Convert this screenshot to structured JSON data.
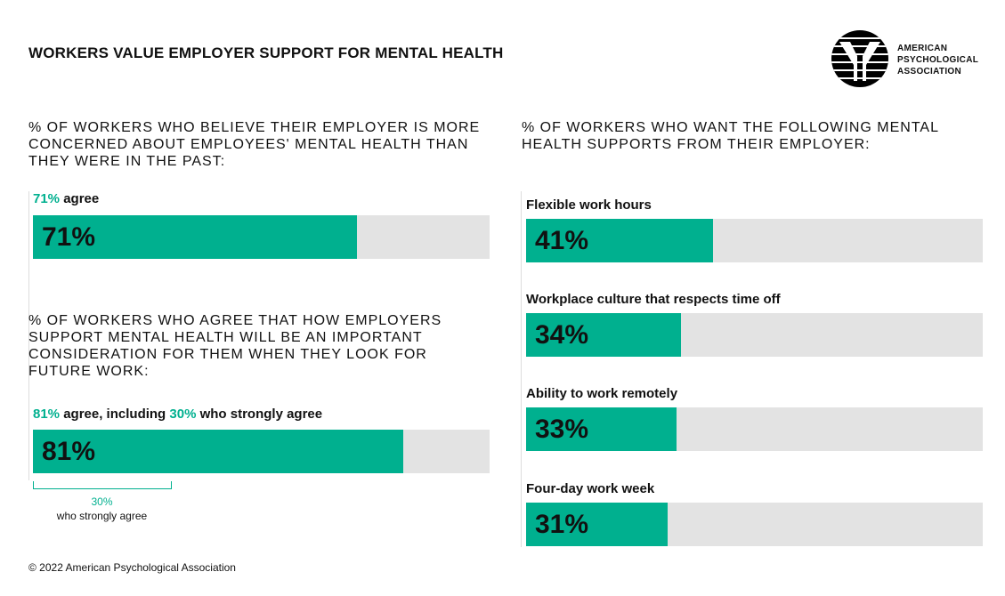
{
  "title": "WORKERS VALUE EMPLOYER SUPPORT FOR MENTAL HEALTH",
  "logo": {
    "lines": [
      "AMERICAN",
      "PSYCHOLOGICAL",
      "ASSOCIATION"
    ]
  },
  "left": {
    "q1": "% OF WORKERS WHO BELIEVE THEIR EMPLOYER IS MORE CONCERNED ABOUT EMPLOYEES' MENTAL HEALTH THAN THEY WERE IN THE PAST:",
    "q1_label_pct": "71%",
    "q1_label_rest": " agree",
    "q2": "% OF WORKERS WHO AGREE THAT HOW EMPLOYERS SUPPORT MENTAL HEALTH WILL BE AN IMPORTANT CONSIDERATION FOR THEM WHEN THEY LOOK FOR FUTURE WORK:",
    "q2_label_pct": "81%",
    "q2_label_mid": " agree, including ",
    "q2_label_pct2": "30%",
    "q2_label_rest": " who strongly agree",
    "bracket_pct": "30%",
    "bracket_text": "who strongly agree"
  },
  "right": {
    "q": "% OF WORKERS WHO WANT THE FOLLOWING MENTAL HEALTH SUPPORTS FROM THEIR EMPLOYER:"
  },
  "chart_data": [
    {
      "type": "bar",
      "title": "% of workers who believe their employer is more concerned about employees' mental health than in the past",
      "categories": [
        "agree"
      ],
      "values": [
        71
      ],
      "labels": [
        "71%"
      ],
      "ylim": [
        0,
        100
      ]
    },
    {
      "type": "bar",
      "title": "% of workers who agree employer mental health support is an important consideration for future work",
      "categories": [
        "agree"
      ],
      "values": [
        81
      ],
      "labels": [
        "81%"
      ],
      "sub_value": {
        "label": "strongly agree",
        "value": 30
      },
      "ylim": [
        0,
        100
      ]
    },
    {
      "type": "bar",
      "title": "% of workers who want the following mental health supports from their employer",
      "categories": [
        "Flexible work hours",
        "Workplace culture that respects time off",
        "Ability to work remotely",
        "Four-day work week"
      ],
      "values": [
        41,
        34,
        33,
        31
      ],
      "labels": [
        "41%",
        "34%",
        "33%",
        "31%"
      ],
      "ylim": [
        0,
        100
      ]
    }
  ],
  "colors": {
    "accent": "#00b08f",
    "track": "#e3e3e3"
  },
  "footer": "© 2022 American Psychological Association"
}
